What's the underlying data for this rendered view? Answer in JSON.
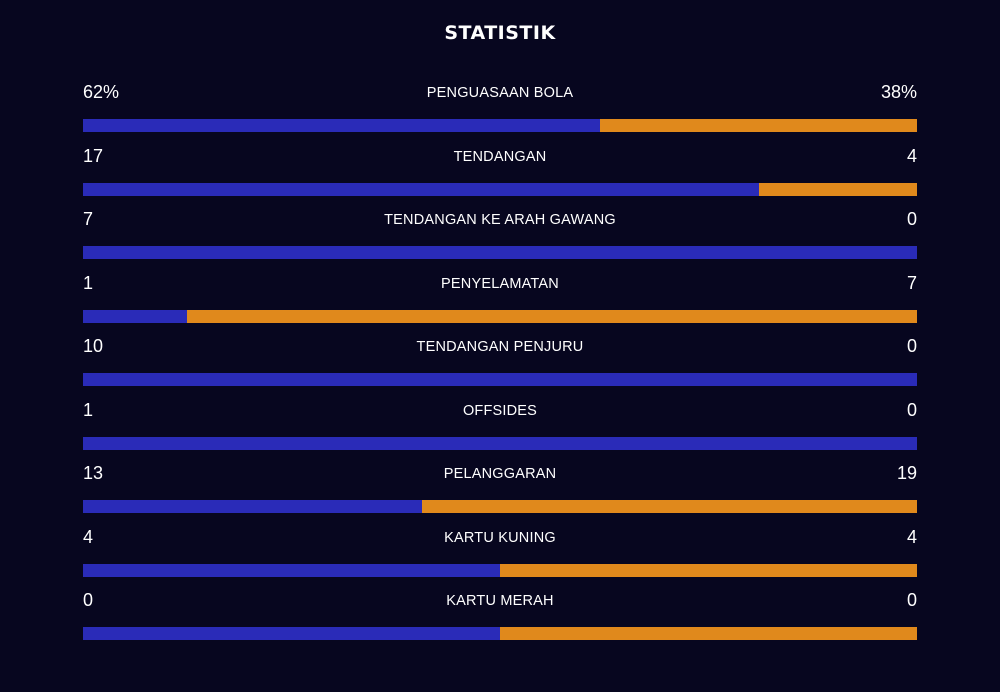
{
  "title": "STATISTIK",
  "colors": {
    "background": "#07061f",
    "home": "#2a2bb8",
    "away": "#e0891c"
  },
  "stats": [
    {
      "name": "PENGUASAAN BOLA",
      "home": "62%",
      "away": "38%",
      "home_share": 0.62
    },
    {
      "name": "TENDANGAN",
      "home": "17",
      "away": "4",
      "home_share": 0.81
    },
    {
      "name": "TENDANGAN KE ARAH GAWANG",
      "home": "7",
      "away": "0",
      "home_share": 1.0
    },
    {
      "name": "PENYELAMATAN",
      "home": "1",
      "away": "7",
      "home_share": 0.125
    },
    {
      "name": "TENDANGAN PENJURU",
      "home": "10",
      "away": "0",
      "home_share": 1.0
    },
    {
      "name": "OFFSIDES",
      "home": "1",
      "away": "0",
      "home_share": 1.0
    },
    {
      "name": "PELANGGARAN",
      "home": "13",
      "away": "19",
      "home_share": 0.406
    },
    {
      "name": "KARTU KUNING",
      "home": "4",
      "away": "4",
      "home_share": 0.5
    },
    {
      "name": "KARTU MERAH",
      "home": "0",
      "away": "0",
      "home_share": 0.5
    }
  ]
}
